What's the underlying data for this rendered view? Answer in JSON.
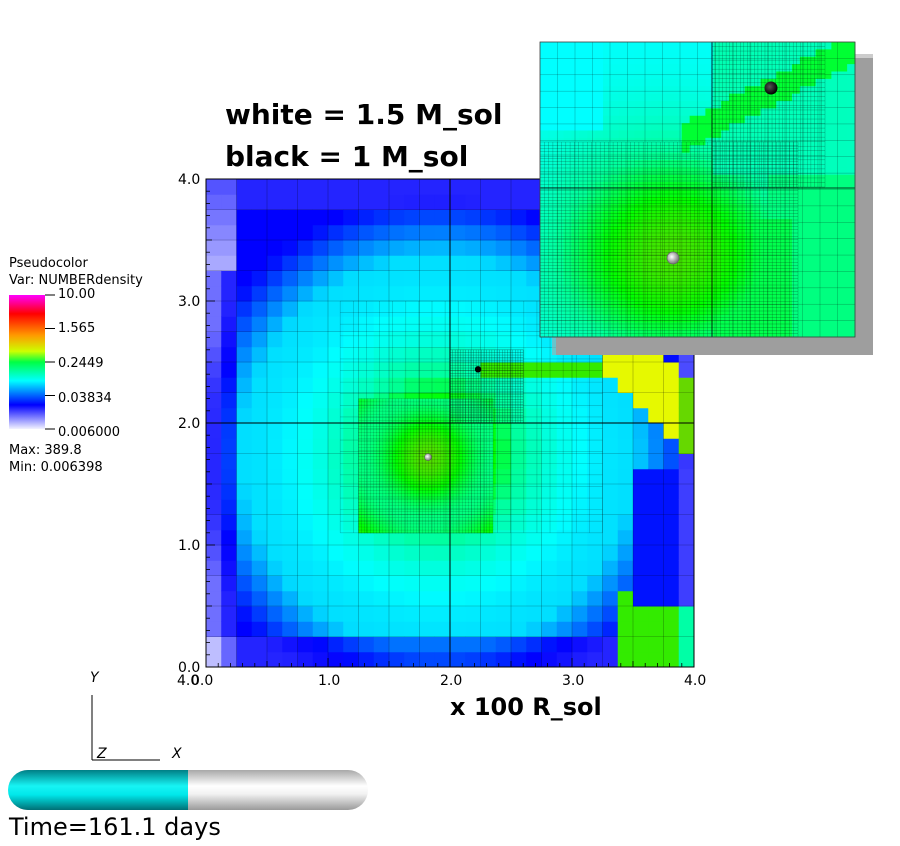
{
  "annotations": {
    "white_label": "white = 1.5 M_sol",
    "black_label": "black = 1 M_sol",
    "x_axis_label": "x 100 R_sol"
  },
  "legend": {
    "title": "Pseudocolor",
    "var": "Var: NUMBERdensity",
    "ticks": [
      "10.00",
      "1.565",
      "0.2449",
      "0.03834",
      "0.006000"
    ],
    "max": "Max:  389.8",
    "min": "Min:  0.006398",
    "colors": [
      "#ff00ff",
      "#ff0000",
      "#ff8000",
      "#ffff00",
      "#00ff00",
      "#00ffff",
      "#0000ff",
      "#ffffff"
    ]
  },
  "axes": {
    "x_ticks": [
      "0.0",
      "1.0",
      "2.0",
      "3.0",
      "4.0"
    ],
    "y_ticks": [
      "0.0",
      "1.0",
      "2.0",
      "3.0",
      "4.0"
    ],
    "x_origin_extra": "4.0",
    "triad_y": "Y",
    "triad_z": "Z",
    "triad_x": "X"
  },
  "time": {
    "label": "Time=161.1 days",
    "progress": 0.5
  },
  "stars": {
    "white_star": {
      "x": 1.82,
      "y": 1.72,
      "color": "#b0b0b0"
    },
    "black_star": {
      "x": 2.23,
      "y": 2.44,
      "color": "#000000"
    }
  },
  "colors": {
    "low": "#0000ff",
    "mid": "#00ffff",
    "high": "#00ff00"
  }
}
